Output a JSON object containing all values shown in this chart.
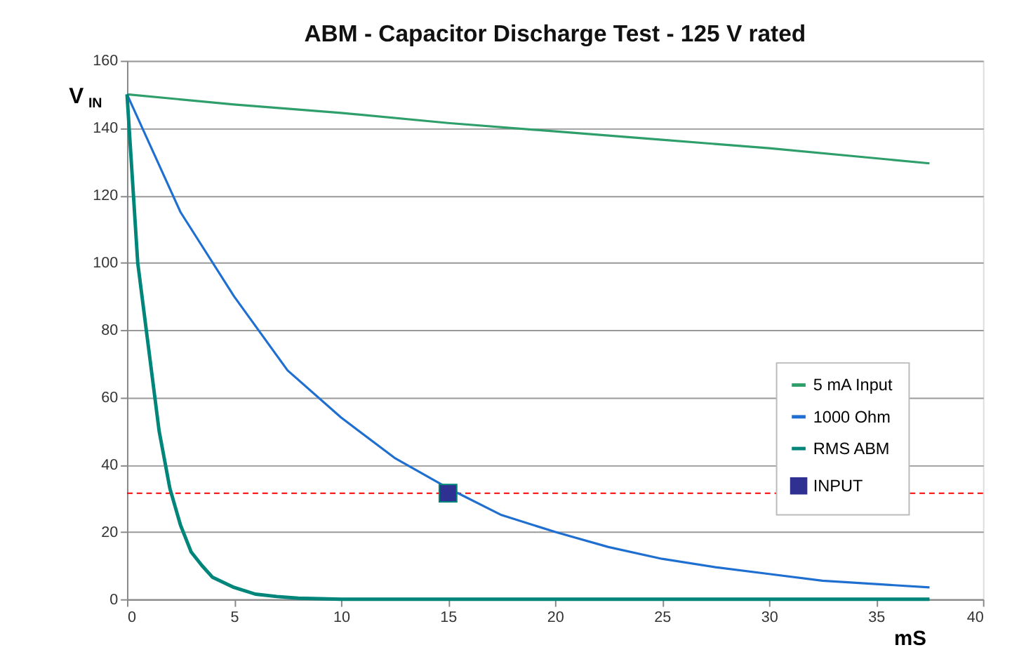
{
  "chart_data": {
    "type": "line",
    "title": "ABM - Capacitor Discharge Test - 125 V rated",
    "xlabel": "mS",
    "ylabel": "V$_{IN}$",
    "xlim": [
      0,
      40
    ],
    "xticks": [
      0,
      5,
      10,
      15,
      20,
      25,
      30,
      35,
      40
    ],
    "ylim": [
      0,
      160
    ],
    "yticks": [
      0,
      20,
      40,
      60,
      80,
      100,
      120,
      140,
      160
    ],
    "grid": "y",
    "legend": "right",
    "line_style": "solid",
    "series": [
      {
        "name": "5 mA Input",
        "color": "#2e9e6b",
        "x": [
          0,
          5,
          10,
          15,
          20,
          25,
          30,
          35,
          37.5
        ],
        "values": [
          150,
          147,
          144.5,
          141.5,
          139,
          136.5,
          134,
          131,
          129.5
        ]
      },
      {
        "name": "1000 Ohm",
        "color": "#1f6fd1",
        "x": [
          0,
          2.5,
          5,
          7.5,
          10,
          12.5,
          15,
          17.5,
          20,
          22.5,
          25,
          27.5,
          30,
          32.5,
          35,
          37.5
        ],
        "values": [
          150,
          115,
          90,
          68,
          54,
          42,
          33,
          25,
          20,
          15.5,
          12,
          9.5,
          7.5,
          5.5,
          4.5,
          3.5
        ]
      },
      {
        "name": "RMS ABM",
        "color": "#00857a",
        "x": [
          0,
          0.5,
          1,
          1.5,
          2,
          2.5,
          3,
          3.5,
          4,
          5,
          6,
          7,
          8,
          10,
          37.5
        ],
        "values": [
          150,
          100,
          75,
          50,
          33,
          22,
          14,
          10,
          6.5,
          3.5,
          1.5,
          0.8,
          0.3,
          0,
          0
        ]
      },
      {
        "name": "INPUT",
        "color": "#2e3192",
        "type": "scatter",
        "marker": "square",
        "x": [
          15
        ],
        "values": [
          31.5
        ]
      }
    ],
    "ref_lines": [
      {
        "axis": "y",
        "value": 31.5,
        "color": "#ff0000",
        "line_style": "dashed"
      }
    ]
  }
}
